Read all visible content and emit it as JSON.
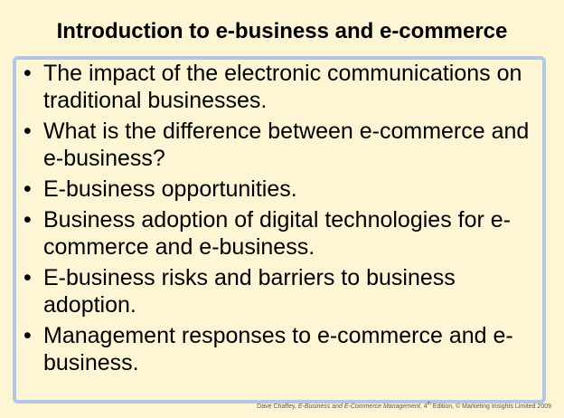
{
  "slide": {
    "title": "Introduction to e-business and e-commerce",
    "bullet_symbol": "•",
    "bullets": [
      "The impact of the electronic communications on traditional businesses.",
      "What is the difference between e-commerce and e-business?",
      "E-business opportunities.",
      "Business adoption of digital technologies for e-commerce and e-business.",
      "E-business risks and barriers to business adoption.",
      "Management responses to e-commerce and e-business."
    ]
  },
  "footer": {
    "author": "Dave Chaffey,",
    "book_title": "E-Business and E-Commerce Management",
    "edition_number": ", 4",
    "edition_suffix": "th",
    "edition_rest": " Edition, © Marketing Insights Limited 2009"
  },
  "colors": {
    "background": "#fdf5d4",
    "box_border": "#b3c6e3",
    "text": "#000000"
  }
}
